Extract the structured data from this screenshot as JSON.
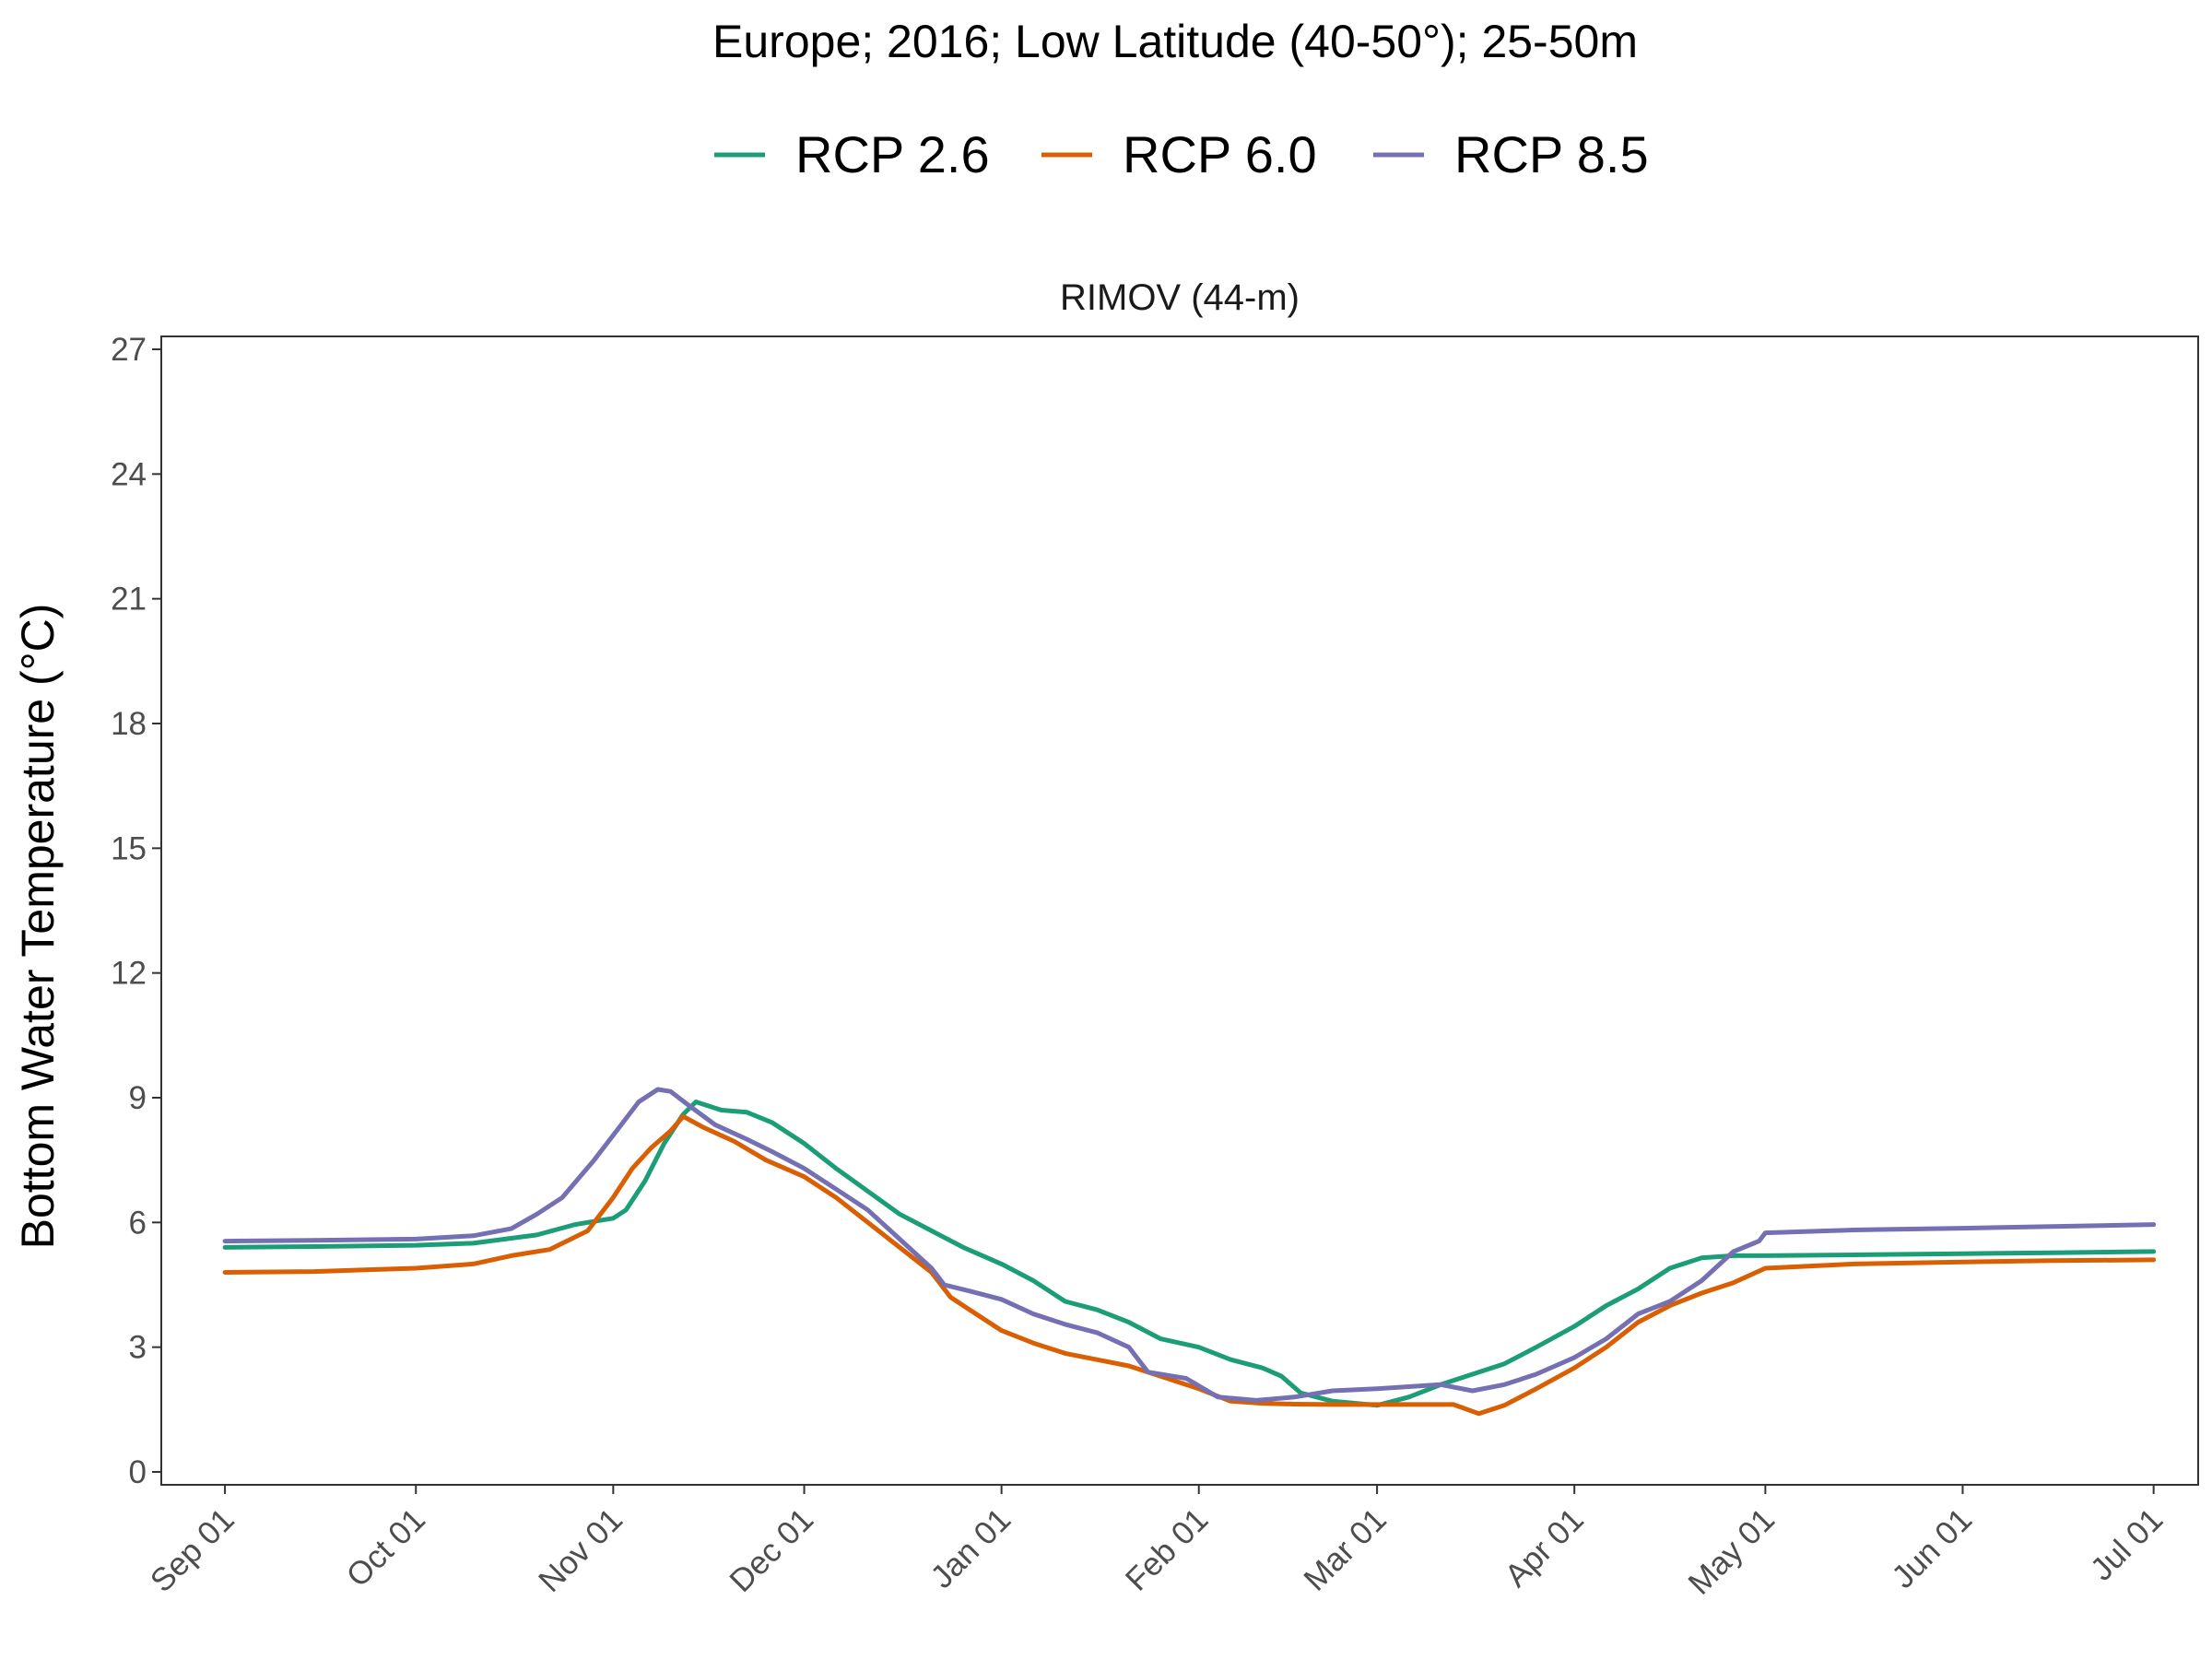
{
  "chart_data": {
    "type": "line",
    "title": "Europe;  2016;  Low Latitude (40-50°);  25-50m",
    "panel_title": "RIMOV (44-m)",
    "xlabel": "",
    "ylabel": "Bottom Water Temperature (°C)",
    "ylim": [
      0,
      27
    ],
    "yticks": [
      0,
      3,
      6,
      9,
      12,
      15,
      18,
      21,
      24,
      27
    ],
    "ytick_labels": [
      "0",
      "3",
      "6",
      "9",
      "12",
      "15",
      "18",
      "21",
      "24",
      "27"
    ],
    "xlim": [
      "2016-08-22",
      "2017-07-08"
    ],
    "xticks": [
      "2016-09-01",
      "2016-10-01",
      "2016-11-01",
      "2016-12-01",
      "2017-01-01",
      "2017-02-01",
      "2017-03-01",
      "2017-04-01",
      "2017-05-01",
      "2017-06-01",
      "2017-07-01"
    ],
    "xtick_labels": [
      "Sep 01",
      "Oct 01",
      "Nov 01",
      "Dec 01",
      "Jan 01",
      "Feb 01",
      "Mar 01",
      "Apr 01",
      "May 01",
      "Jun 01",
      "Jul 01"
    ],
    "grid": false,
    "legend_position": "top",
    "series": [
      {
        "name": "RCP 2.6",
        "color": "#1b9e77",
        "x": [
          "2016-09-01",
          "2016-09-15",
          "2016-10-01",
          "2016-10-10",
          "2016-10-20",
          "2016-10-26",
          "2016-11-01",
          "2016-11-03",
          "2016-11-06",
          "2016-11-09",
          "2016-11-12",
          "2016-11-14",
          "2016-11-18",
          "2016-11-22",
          "2016-11-26",
          "2016-12-01",
          "2016-12-06",
          "2016-12-11",
          "2016-12-16",
          "2016-12-21",
          "2016-12-26",
          "2017-01-01",
          "2017-01-06",
          "2017-01-11",
          "2017-01-16",
          "2017-01-21",
          "2017-01-26",
          "2017-02-01",
          "2017-02-06",
          "2017-02-11",
          "2017-02-14",
          "2017-02-17",
          "2017-02-22",
          "2017-03-01",
          "2017-03-06",
          "2017-03-11",
          "2017-03-16",
          "2017-03-21",
          "2017-03-26",
          "2017-04-01",
          "2017-04-06",
          "2017-04-11",
          "2017-04-16",
          "2017-04-21",
          "2017-04-26",
          "2017-05-01",
          "2017-05-15",
          "2017-06-01",
          "2017-06-15",
          "2017-07-01"
        ],
        "y": [
          5.4,
          5.42,
          5.45,
          5.5,
          5.7,
          5.95,
          6.1,
          6.3,
          7.0,
          7.9,
          8.6,
          8.9,
          8.7,
          8.65,
          8.4,
          7.9,
          7.3,
          6.75,
          6.2,
          5.8,
          5.4,
          5.0,
          4.6,
          4.1,
          3.9,
          3.6,
          3.2,
          3.0,
          2.7,
          2.5,
          2.3,
          1.9,
          1.7,
          1.6,
          1.8,
          2.1,
          2.35,
          2.6,
          3.0,
          3.5,
          4.0,
          4.4,
          4.9,
          5.15,
          5.2,
          5.2,
          5.22,
          5.25,
          5.27,
          5.3
        ]
      },
      {
        "name": "RCP 6.0",
        "color": "#d95f02",
        "x": [
          "2016-09-01",
          "2016-09-15",
          "2016-10-01",
          "2016-10-10",
          "2016-10-16",
          "2016-10-22",
          "2016-10-28",
          "2016-11-01",
          "2016-11-04",
          "2016-11-07",
          "2016-11-10",
          "2016-11-12",
          "2016-11-15",
          "2016-11-20",
          "2016-11-25",
          "2016-12-01",
          "2016-12-06",
          "2016-12-11",
          "2016-12-16",
          "2016-12-21",
          "2016-12-24",
          "2016-12-27",
          "2017-01-01",
          "2017-01-06",
          "2017-01-11",
          "2017-01-16",
          "2017-01-21",
          "2017-01-26",
          "2017-02-01",
          "2017-02-06",
          "2017-02-11",
          "2017-02-16",
          "2017-02-22",
          "2017-03-01",
          "2017-03-06",
          "2017-03-11",
          "2017-03-13",
          "2017-03-17",
          "2017-03-21",
          "2017-03-26",
          "2017-04-01",
          "2017-04-06",
          "2017-04-11",
          "2017-04-16",
          "2017-04-21",
          "2017-04-26",
          "2017-05-01",
          "2017-05-15",
          "2017-06-01",
          "2017-06-15",
          "2017-07-01"
        ],
        "y": [
          4.8,
          4.82,
          4.9,
          5.0,
          5.2,
          5.35,
          5.8,
          6.6,
          7.3,
          7.8,
          8.2,
          8.55,
          8.3,
          7.95,
          7.5,
          7.1,
          6.6,
          6.0,
          5.4,
          4.8,
          4.2,
          3.9,
          3.4,
          3.1,
          2.85,
          2.7,
          2.55,
          2.3,
          2.0,
          1.7,
          1.65,
          1.63,
          1.62,
          1.62,
          1.62,
          1.62,
          1.62,
          1.4,
          1.6,
          2.0,
          2.5,
          3.0,
          3.6,
          4.0,
          4.3,
          4.55,
          4.9,
          5.0,
          5.05,
          5.08,
          5.1
        ]
      },
      {
        "name": "RCP 8.5",
        "color": "#7570b3",
        "x": [
          "2016-09-01",
          "2016-09-15",
          "2016-10-01",
          "2016-10-10",
          "2016-10-16",
          "2016-10-20",
          "2016-10-24",
          "2016-10-29",
          "2016-11-02",
          "2016-11-05",
          "2016-11-08",
          "2016-11-10",
          "2016-11-13",
          "2016-11-17",
          "2016-11-22",
          "2016-11-26",
          "2016-12-01",
          "2016-12-06",
          "2016-12-11",
          "2016-12-16",
          "2016-12-21",
          "2016-12-23",
          "2016-12-27",
          "2017-01-01",
          "2017-01-06",
          "2017-01-11",
          "2017-01-16",
          "2017-01-21",
          "2017-01-24",
          "2017-01-30",
          "2017-02-04",
          "2017-02-10",
          "2017-02-16",
          "2017-02-22",
          "2017-03-01",
          "2017-03-06",
          "2017-03-11",
          "2017-03-16",
          "2017-03-21",
          "2017-03-26",
          "2017-04-01",
          "2017-04-06",
          "2017-04-11",
          "2017-04-16",
          "2017-04-21",
          "2017-04-26",
          "2017-04-30",
          "2017-05-01",
          "2017-05-15",
          "2017-06-01",
          "2017-06-15",
          "2017-07-01"
        ],
        "y": [
          5.55,
          5.57,
          5.6,
          5.68,
          5.85,
          6.2,
          6.6,
          7.5,
          8.3,
          8.9,
          9.2,
          9.15,
          8.8,
          8.35,
          8.0,
          7.7,
          7.3,
          6.8,
          6.3,
          5.6,
          4.9,
          4.5,
          4.35,
          4.15,
          3.8,
          3.55,
          3.35,
          3.0,
          2.4,
          2.25,
          1.8,
          1.72,
          1.8,
          1.95,
          2.0,
          2.05,
          2.1,
          1.95,
          2.1,
          2.35,
          2.75,
          3.2,
          3.8,
          4.1,
          4.6,
          5.3,
          5.55,
          5.75,
          5.82,
          5.86,
          5.9,
          5.95
        ]
      }
    ]
  }
}
